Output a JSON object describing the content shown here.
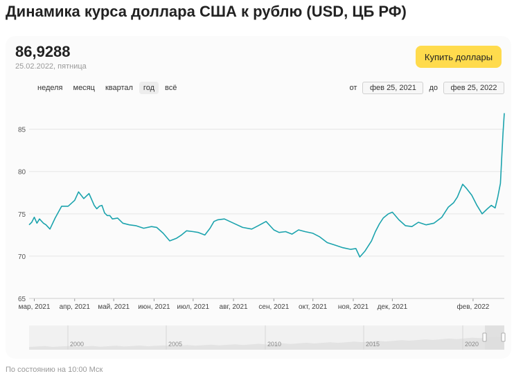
{
  "header": {
    "title": "Динамика курса доллара США к рублю (USD, ЦБ РФ)"
  },
  "rate": {
    "value": "86,9288",
    "date": "25.02.2022, пятница"
  },
  "buy_button": {
    "label": "Купить доллары"
  },
  "period_tabs": [
    {
      "label": "неделя",
      "active": false
    },
    {
      "label": "месяц",
      "active": false
    },
    {
      "label": "квартал",
      "active": false
    },
    {
      "label": "год",
      "active": true
    },
    {
      "label": "всё",
      "active": false
    }
  ],
  "range": {
    "from_label": "от",
    "from_value": "фев 25, 2021",
    "to_label": "до",
    "to_value": "фев 25, 2022"
  },
  "footnote": "По состоянию на 10:00 Мск",
  "colors": {
    "line": "#1ba3ad",
    "accent": "#ffdb4d"
  },
  "chart_data": {
    "type": "line",
    "title": "",
    "xlabel": "",
    "ylabel": "",
    "grid": true,
    "ylim": [
      65,
      88
    ],
    "xlim": [
      "2021-02-25",
      "2022-02-25"
    ],
    "yticks": [
      {
        "value": 65,
        "label": "65"
      },
      {
        "value": 70,
        "label": "70"
      },
      {
        "value": 75,
        "label": "75"
      },
      {
        "value": 80,
        "label": "80"
      },
      {
        "value": 85,
        "label": "85"
      }
    ],
    "xticks": [
      {
        "date": "2021-03-01",
        "label": "мар, 2021"
      },
      {
        "date": "2021-04-01",
        "label": "апр, 2021"
      },
      {
        "date": "2021-05-01",
        "label": "май, 2021"
      },
      {
        "date": "2021-06-01",
        "label": "июн, 2021"
      },
      {
        "date": "2021-07-01",
        "label": "июл, 2021"
      },
      {
        "date": "2021-08-01",
        "label": "авг, 2021"
      },
      {
        "date": "2021-09-01",
        "label": "сен, 2021"
      },
      {
        "date": "2021-10-01",
        "label": "окт, 2021"
      },
      {
        "date": "2021-11-01",
        "label": "ноя, 2021"
      },
      {
        "date": "2021-12-01",
        "label": "дек, 2021"
      },
      {
        "date": "2022-02-01",
        "label": "фев, 2022"
      }
    ],
    "series": [
      {
        "x": [
          "2021-02-25",
          "2021-02-27",
          "2021-03-01",
          "2021-03-03",
          "2021-03-05",
          "2021-03-08",
          "2021-03-10",
          "2021-03-13",
          "2021-03-17",
          "2021-03-22",
          "2021-03-27",
          "2021-04-01",
          "2021-04-04",
          "2021-04-08",
          "2021-04-12",
          "2021-04-16",
          "2021-04-18",
          "2021-04-20",
          "2021-04-22",
          "2021-04-24",
          "2021-04-26",
          "2021-04-28",
          "2021-04-30",
          "2021-05-04",
          "2021-05-08",
          "2021-05-13",
          "2021-05-18",
          "2021-05-24",
          "2021-05-30",
          "2021-06-03",
          "2021-06-08",
          "2021-06-13",
          "2021-06-18",
          "2021-06-22",
          "2021-06-26",
          "2021-07-01",
          "2021-07-05",
          "2021-07-10",
          "2021-07-14",
          "2021-07-17",
          "2021-07-20",
          "2021-07-25",
          "2021-08-01",
          "2021-08-08",
          "2021-08-15",
          "2021-08-20",
          "2021-08-26",
          "2021-09-01",
          "2021-09-05",
          "2021-09-10",
          "2021-09-15",
          "2021-09-20",
          "2021-09-25",
          "2021-10-01",
          "2021-10-06",
          "2021-10-12",
          "2021-10-18",
          "2021-10-24",
          "2021-10-30",
          "2021-11-03",
          "2021-11-06",
          "2021-11-10",
          "2021-11-15",
          "2021-11-18",
          "2021-11-21",
          "2021-11-24",
          "2021-11-28",
          "2021-12-01",
          "2021-12-06",
          "2021-12-11",
          "2021-12-16",
          "2021-12-21",
          "2021-12-27",
          "2022-01-02",
          "2022-01-08",
          "2022-01-13",
          "2022-01-17",
          "2022-01-20",
          "2022-01-24",
          "2022-01-27",
          "2022-01-31",
          "2022-02-04",
          "2022-02-08",
          "2022-02-12",
          "2022-02-15",
          "2022-02-18",
          "2022-02-20",
          "2022-02-22",
          "2022-02-23",
          "2022-02-24",
          "2022-02-25"
        ],
        "y": [
          73.7,
          74.0,
          74.6,
          73.9,
          74.4,
          73.9,
          73.7,
          73.2,
          74.5,
          75.9,
          75.9,
          76.6,
          77.6,
          76.8,
          77.4,
          76.0,
          75.6,
          75.9,
          76.0,
          75.1,
          74.8,
          74.8,
          74.4,
          74.5,
          73.9,
          73.7,
          73.6,
          73.3,
          73.5,
          73.4,
          72.7,
          71.8,
          72.1,
          72.5,
          73.0,
          72.9,
          72.8,
          72.5,
          73.3,
          74.1,
          74.3,
          74.4,
          73.9,
          73.4,
          73.2,
          73.6,
          74.1,
          73.1,
          72.8,
          72.9,
          72.6,
          73.1,
          72.9,
          72.7,
          72.3,
          71.6,
          71.3,
          71.0,
          70.8,
          70.9,
          69.9,
          70.6,
          71.8,
          72.9,
          73.8,
          74.5,
          75.0,
          75.2,
          74.3,
          73.6,
          73.5,
          74.0,
          73.7,
          73.9,
          74.6,
          75.8,
          76.3,
          77.0,
          78.5,
          78.0,
          77.2,
          76.0,
          75.0,
          75.6,
          76.0,
          75.7,
          77.0,
          78.6,
          81.5,
          84.5,
          86.9
        ]
      }
    ]
  },
  "navigator": {
    "ticks": [
      {
        "date": "2000",
        "label": "2000"
      },
      {
        "date": "2005",
        "label": "2005"
      },
      {
        "date": "2010",
        "label": "2010"
      },
      {
        "date": "2015",
        "label": "2015"
      },
      {
        "date": "2020",
        "label": "2020"
      }
    ]
  }
}
